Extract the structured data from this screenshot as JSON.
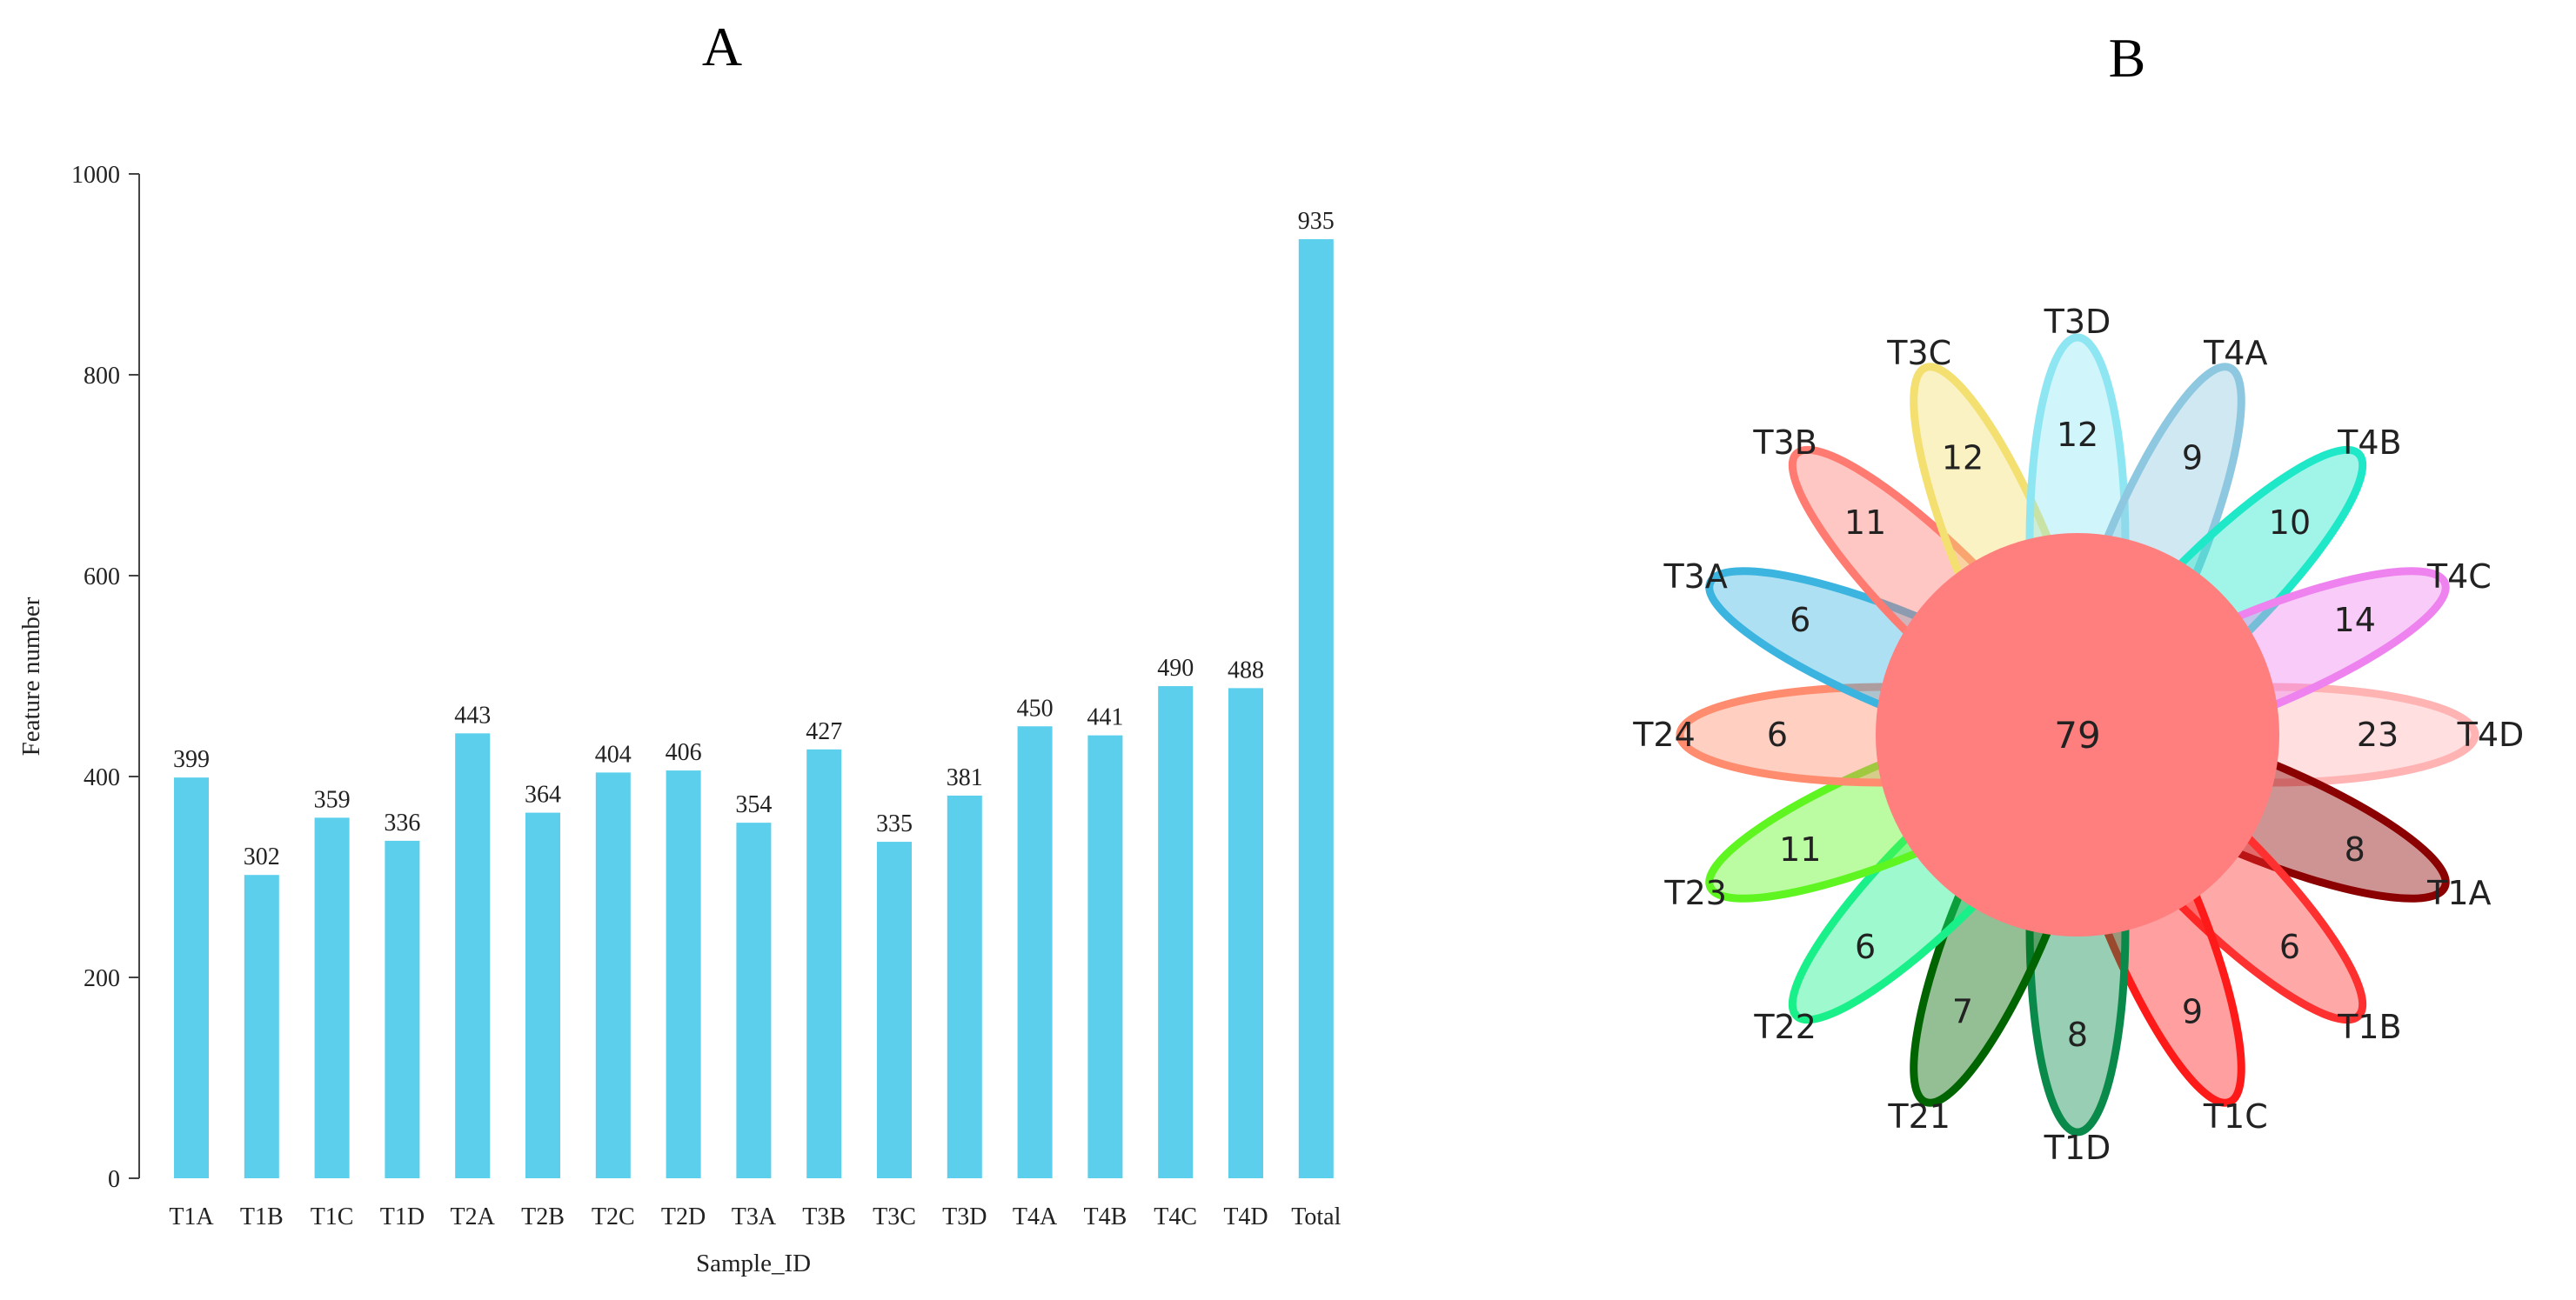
{
  "panels": {
    "a_label": "A",
    "b_label": "B"
  },
  "chart_data": [
    {
      "type": "bar",
      "title": "",
      "xlabel": "Sample_ID",
      "ylabel": "Feature number",
      "ylim": [
        0,
        1000
      ],
      "yticks": [
        0,
        200,
        400,
        600,
        800,
        1000
      ],
      "categories": [
        "T1A",
        "T1B",
        "T1C",
        "T1D",
        "T2A",
        "T2B",
        "T2C",
        "T2D",
        "T3A",
        "T3B",
        "T3C",
        "T3D",
        "T4A",
        "T4B",
        "T4C",
        "T4D",
        "Total"
      ],
      "values": [
        399,
        302,
        359,
        336,
        443,
        364,
        404,
        406,
        354,
        427,
        335,
        381,
        450,
        441,
        490,
        488,
        935
      ],
      "bar_color": "#5bcfec",
      "grid": false
    },
    {
      "type": "flower_venn",
      "center_value": 79,
      "center_color": "#ff7f7f",
      "petals": [
        {
          "name": "T4D",
          "value": 23,
          "color": "#ffb3b3"
        },
        {
          "name": "T1A",
          "value": 8,
          "color": "#8b0000"
        },
        {
          "name": "T1B",
          "value": 6,
          "color": "#ff3030"
        },
        {
          "name": "T1C",
          "value": 9,
          "color": "#ff1a1a"
        },
        {
          "name": "T1D",
          "value": 8,
          "color": "#0a8a4a"
        },
        {
          "name": "T21",
          "value": 7,
          "color": "#006400"
        },
        {
          "name": "T22",
          "value": 6,
          "color": "#19f08a"
        },
        {
          "name": "T23",
          "value": 11,
          "color": "#5ef520"
        },
        {
          "name": "T24",
          "value": 6,
          "color": "#ff8c6e"
        },
        {
          "name": "T3A",
          "value": 6,
          "color": "#3cb4e0"
        },
        {
          "name": "T3B",
          "value": 11,
          "color": "#ff7a70"
        },
        {
          "name": "T3C",
          "value": 12,
          "color": "#f3e070"
        },
        {
          "name": "T3D",
          "value": 12,
          "color": "#8ee6f2"
        },
        {
          "name": "T4A",
          "value": 9,
          "color": "#8ec8e0"
        },
        {
          "name": "T4B",
          "value": 10,
          "color": "#1ee8c8"
        },
        {
          "name": "T4C",
          "value": 14,
          "color": "#ee82ee"
        }
      ]
    }
  ]
}
